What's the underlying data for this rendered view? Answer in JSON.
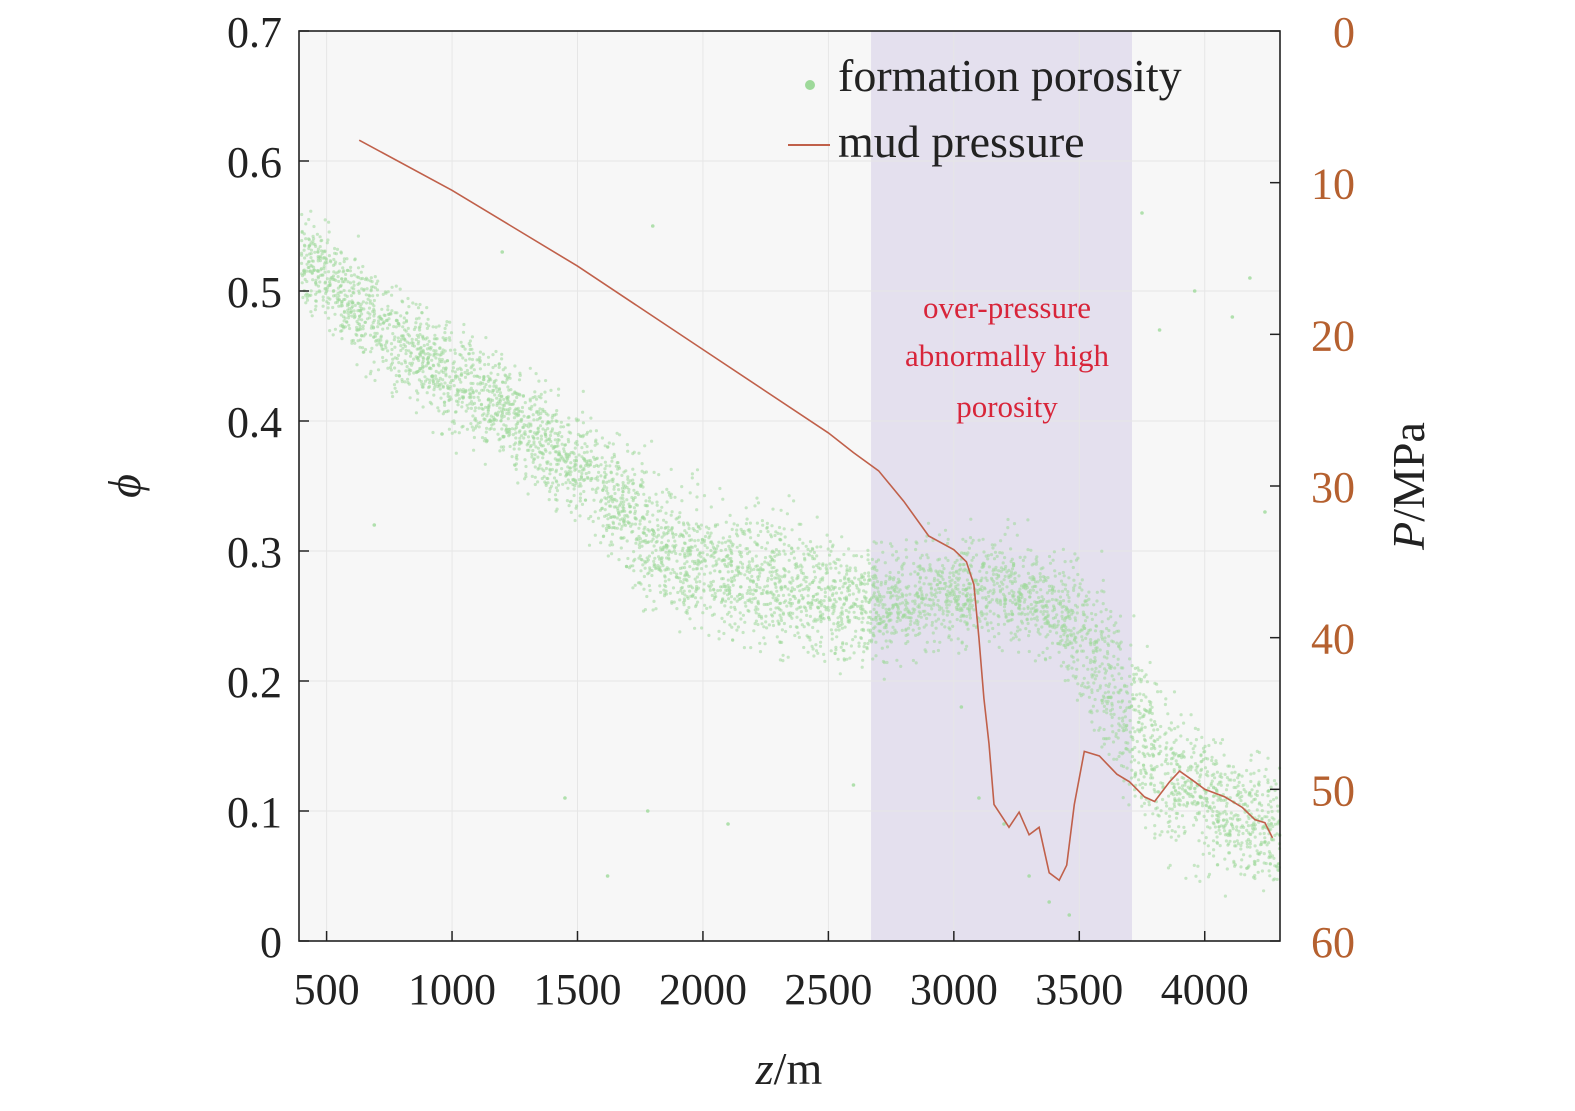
{
  "chart_data": {
    "type": "scatter",
    "x_axis": {
      "label_italic": "z",
      "label_suffix": "/m",
      "range": [
        390,
        4300
      ],
      "ticks": [
        500,
        1000,
        1500,
        2000,
        2500,
        3000,
        3500,
        4000
      ],
      "tick_labels": [
        "500",
        "1000",
        "1500",
        "2000",
        "2500",
        "3000",
        "3500",
        "4000"
      ]
    },
    "y_left": {
      "label": "ϕ",
      "range": [
        0,
        0.7
      ],
      "ticks": [
        0,
        0.1,
        0.2,
        0.3,
        0.4,
        0.5,
        0.6,
        0.7
      ],
      "tick_labels": [
        "0",
        "0.1",
        "0.2",
        "0.3",
        "0.4",
        "0.5",
        "0.6",
        "0.7"
      ]
    },
    "y_right": {
      "label_italic": "P",
      "label_suffix": "/MPa",
      "range": [
        0,
        60
      ],
      "inverted": true,
      "ticks": [
        0,
        10,
        20,
        30,
        40,
        50,
        60
      ],
      "tick_labels": [
        "0",
        "10",
        "20",
        "30",
        "40",
        "50",
        "60"
      ]
    },
    "grid": true,
    "legend_position": "top-right",
    "series": [
      {
        "name": "formation porosity",
        "kind": "scatter",
        "color": "#9ed99a",
        "trend": [
          {
            "x": 400,
            "y": 0.53,
            "spread": 0.03
          },
          {
            "x": 600,
            "y": 0.49,
            "spread": 0.035
          },
          {
            "x": 800,
            "y": 0.46,
            "spread": 0.035
          },
          {
            "x": 1000,
            "y": 0.43,
            "spread": 0.035
          },
          {
            "x": 1200,
            "y": 0.41,
            "spread": 0.035
          },
          {
            "x": 1400,
            "y": 0.38,
            "spread": 0.035
          },
          {
            "x": 1600,
            "y": 0.35,
            "spread": 0.04
          },
          {
            "x": 1800,
            "y": 0.31,
            "spread": 0.045
          },
          {
            "x": 2000,
            "y": 0.29,
            "spread": 0.045
          },
          {
            "x": 2200,
            "y": 0.28,
            "spread": 0.045
          },
          {
            "x": 2400,
            "y": 0.27,
            "spread": 0.045
          },
          {
            "x": 2600,
            "y": 0.26,
            "spread": 0.04
          },
          {
            "x": 2800,
            "y": 0.26,
            "spread": 0.04
          },
          {
            "x": 3000,
            "y": 0.27,
            "spread": 0.035
          },
          {
            "x": 3200,
            "y": 0.27,
            "spread": 0.035
          },
          {
            "x": 3400,
            "y": 0.26,
            "spread": 0.035
          },
          {
            "x": 3600,
            "y": 0.21,
            "spread": 0.06
          },
          {
            "x": 3800,
            "y": 0.14,
            "spread": 0.06
          },
          {
            "x": 4000,
            "y": 0.11,
            "spread": 0.05
          },
          {
            "x": 4200,
            "y": 0.09,
            "spread": 0.045
          },
          {
            "x": 4300,
            "y": 0.08,
            "spread": 0.045
          }
        ],
        "outliers": [
          [
            960,
            0.39
          ],
          [
            1200,
            0.53
          ],
          [
            1800,
            0.55
          ],
          [
            2420,
            0.26
          ],
          [
            3030,
            0.18
          ],
          [
            3100,
            0.11
          ],
          [
            3200,
            0.09
          ],
          [
            3300,
            0.05
          ],
          [
            3380,
            0.03
          ],
          [
            3460,
            0.02
          ],
          [
            3750,
            0.56
          ],
          [
            3820,
            0.47
          ],
          [
            3960,
            0.5
          ],
          [
            4110,
            0.48
          ],
          [
            4180,
            0.51
          ],
          [
            4240,
            0.33
          ],
          [
            1450,
            0.11
          ],
          [
            1620,
            0.05
          ],
          [
            1780,
            0.1
          ],
          [
            2100,
            0.09
          ],
          [
            2600,
            0.12
          ],
          [
            690,
            0.32
          ]
        ]
      },
      {
        "name": "mud pressure",
        "kind": "line",
        "axis": "right",
        "color": "#c0604a",
        "points": [
          [
            630,
            7.2
          ],
          [
            1000,
            10.5
          ],
          [
            1500,
            15.5
          ],
          [
            2000,
            21
          ],
          [
            2500,
            26.5
          ],
          [
            2600,
            27.8
          ],
          [
            2700,
            29
          ],
          [
            2800,
            31
          ],
          [
            2900,
            33.3
          ],
          [
            3000,
            34.2
          ],
          [
            3050,
            35
          ],
          [
            3080,
            36.5
          ],
          [
            3100,
            40
          ],
          [
            3120,
            44
          ],
          [
            3140,
            47
          ],
          [
            3160,
            51
          ],
          [
            3180,
            51.5
          ],
          [
            3220,
            52.5
          ],
          [
            3260,
            51.5
          ],
          [
            3300,
            53
          ],
          [
            3340,
            52.5
          ],
          [
            3380,
            55.5
          ],
          [
            3420,
            56
          ],
          [
            3450,
            55
          ],
          [
            3480,
            51
          ],
          [
            3520,
            47.5
          ],
          [
            3580,
            47.8
          ],
          [
            3650,
            49
          ],
          [
            3700,
            49.5
          ],
          [
            3760,
            50.5
          ],
          [
            3800,
            50.8
          ],
          [
            3860,
            49.5
          ],
          [
            3900,
            48.8
          ],
          [
            3960,
            49.5
          ],
          [
            4000,
            50
          ],
          [
            4080,
            50.5
          ],
          [
            4150,
            51.2
          ],
          [
            4200,
            52
          ],
          [
            4240,
            52.2
          ],
          [
            4270,
            53.2
          ]
        ]
      }
    ],
    "shaded_region": {
      "x_range": [
        2670,
        3710
      ],
      "color": "#e4e0ee",
      "annotation": [
        "over-pressure",
        "abnormally high",
        "porosity"
      ],
      "annotation_color": "#d8253a"
    },
    "legend": [
      {
        "label": "formation porosity",
        "marker": "dot",
        "color": "#9ed99a"
      },
      {
        "label": "mud pressure",
        "marker": "line",
        "color": "#c0604a"
      }
    ]
  }
}
